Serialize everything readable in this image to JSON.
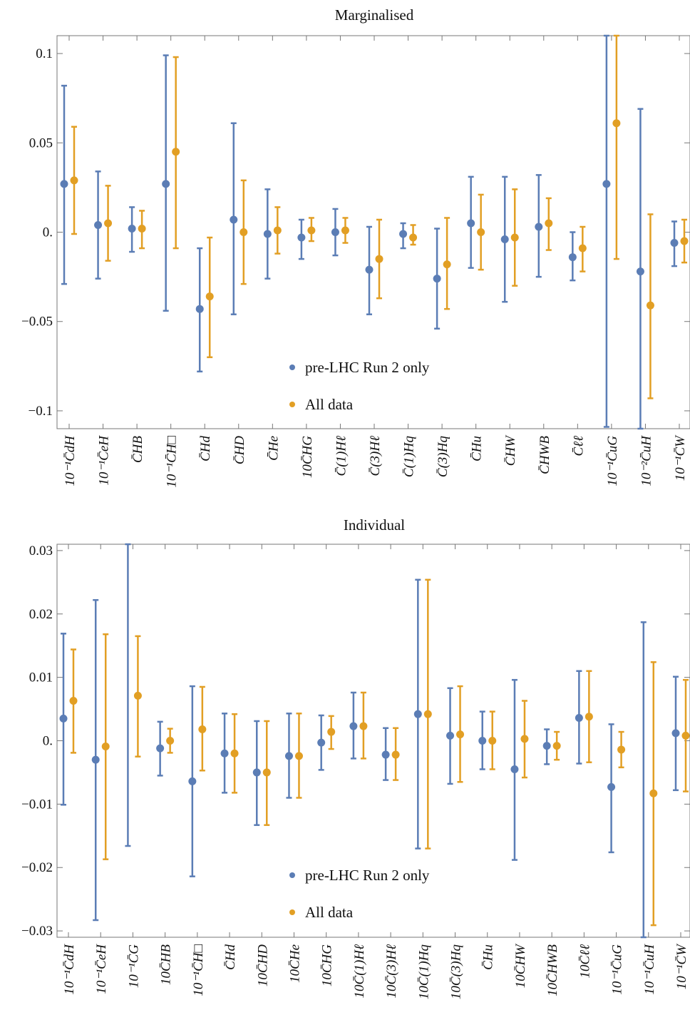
{
  "colors": {
    "pre_lhc": "#5b7db5",
    "all_data": "#e29f24"
  },
  "legend": {
    "series_a": "pre-LHC Run 2 only",
    "series_b": "All data"
  },
  "chart_data": [
    {
      "type": "scatter",
      "title": "Marginalised",
      "ylim": [
        -0.11,
        0.11
      ],
      "yticks": [
        -0.1,
        -0.05,
        0,
        0.05,
        0.1
      ],
      "ytick_labels": [
        "−0.1",
        "−0.05",
        "0.",
        "0.05",
        "0.1"
      ],
      "categories": [
        "10⁻¹C̄dH",
        "10⁻¹C̄eH",
        "C̄HB",
        "10⁻¹C̄H□",
        "C̄Hd",
        "C̄HD",
        "C̄He",
        "10C̄HG",
        "C̄(1)Hℓ",
        "C̄(3)Hℓ",
        "C̄(1)Hq",
        "C̄(3)Hq",
        "C̄Hu",
        "C̄HW",
        "C̄HWB",
        "C̄ℓℓ",
        "10⁻¹C̄uG",
        "10⁻²C̄uH",
        "10⁻¹C̄W"
      ],
      "series": [
        {
          "name": "pre-LHC Run 2 only",
          "values": [
            0.027,
            0.004,
            0.002,
            0.027,
            -0.043,
            0.007,
            -0.001,
            -0.003,
            0.0,
            -0.021,
            -0.001,
            -0.026,
            0.005,
            -0.004,
            0.003,
            -0.014,
            0.027,
            -0.022,
            -0.006
          ],
          "low": [
            -0.029,
            -0.026,
            -0.011,
            -0.044,
            -0.078,
            -0.046,
            -0.026,
            -0.015,
            -0.013,
            -0.046,
            -0.009,
            -0.054,
            -0.02,
            -0.039,
            -0.025,
            -0.027,
            -0.109,
            -0.11,
            -0.019
          ],
          "high": [
            0.082,
            0.034,
            0.014,
            0.099,
            -0.009,
            0.061,
            0.024,
            0.007,
            0.013,
            0.003,
            0.005,
            0.002,
            0.031,
            0.031,
            0.032,
            0.0,
            0.11,
            0.069,
            0.006
          ]
        },
        {
          "name": "All data",
          "values": [
            0.029,
            0.005,
            0.002,
            0.045,
            -0.036,
            0.0,
            0.001,
            0.001,
            0.001,
            -0.015,
            -0.003,
            -0.018,
            0.0,
            -0.003,
            0.005,
            -0.009,
            0.061,
            -0.041,
            -0.005
          ],
          "low": [
            -0.001,
            -0.016,
            -0.009,
            -0.009,
            -0.07,
            -0.029,
            -0.012,
            -0.005,
            -0.006,
            -0.037,
            -0.007,
            -0.043,
            -0.021,
            -0.03,
            -0.01,
            -0.022,
            -0.015,
            -0.093,
            -0.017
          ],
          "high": [
            0.059,
            0.026,
            0.012,
            0.098,
            -0.003,
            0.029,
            0.014,
            0.008,
            0.008,
            0.007,
            0.004,
            0.008,
            0.021,
            0.024,
            0.019,
            0.003,
            0.11,
            0.01,
            0.007
          ]
        }
      ]
    },
    {
      "type": "scatter",
      "title": "Individual",
      "ylim": [
        -0.031,
        0.031
      ],
      "yticks": [
        -0.03,
        -0.02,
        -0.01,
        0,
        0.01,
        0.02,
        0.03
      ],
      "ytick_labels": [
        "−0.03",
        "−0.02",
        "−0.01",
        "0.",
        "0.01",
        "0.02",
        "0.03"
      ],
      "categories": [
        "10⁻¹C̄dH",
        "10⁻¹C̄eH",
        "10⁻¹C̄G",
        "10C̄HB",
        "10⁻¹C̄H□",
        "C̄Hd",
        "10C̄HD",
        "10C̄He",
        "10C̄HG",
        "10C̄(1)Hℓ",
        "10C̄(3)Hℓ",
        "10C̄(1)Hq",
        "10C̄(3)Hq",
        "C̄Hu",
        "10C̄HW",
        "10C̄HWB",
        "10C̄ℓℓ",
        "10⁻¹C̄uG",
        "10⁻¹C̄uH",
        "10⁻¹C̄W"
      ],
      "series": [
        {
          "name": "pre-LHC Run 2 only",
          "values": [
            0.0035,
            -0.003,
            null,
            -0.0012,
            -0.0064,
            -0.002,
            -0.005,
            -0.0024,
            -0.0003,
            0.0023,
            -0.0022,
            0.0042,
            0.0008,
            0.0,
            -0.0045,
            -0.0008,
            0.0036,
            -0.0073,
            null,
            0.0012
          ],
          "low": [
            -0.0101,
            -0.0283,
            -0.0166,
            -0.0055,
            -0.0214,
            -0.0082,
            -0.0133,
            -0.009,
            -0.0046,
            -0.0028,
            -0.0062,
            -0.017,
            -0.0068,
            -0.0045,
            -0.0188,
            -0.0037,
            -0.0036,
            -0.0176,
            -0.031,
            -0.0078
          ],
          "high": [
            0.0169,
            0.0222,
            0.031,
            0.003,
            0.0086,
            0.0043,
            0.0031,
            0.0043,
            0.004,
            0.0076,
            0.002,
            0.0254,
            0.0083,
            0.0046,
            0.0096,
            0.0018,
            0.011,
            0.0026,
            0.0187,
            0.0101
          ]
        },
        {
          "name": "All data",
          "values": [
            0.0063,
            -0.0009,
            0.0071,
            0.0,
            0.0018,
            -0.002,
            -0.005,
            -0.0024,
            0.0014,
            0.0023,
            -0.0022,
            0.0042,
            0.001,
            0.0,
            0.0003,
            -0.0008,
            0.0038,
            -0.0014,
            -0.0083,
            0.0008
          ],
          "low": [
            -0.0019,
            -0.0187,
            -0.0025,
            -0.0019,
            -0.0047,
            -0.0082,
            -0.0133,
            -0.009,
            -0.0013,
            -0.0028,
            -0.0062,
            -0.017,
            -0.0065,
            -0.0045,
            -0.0058,
            -0.003,
            -0.0034,
            -0.0042,
            -0.0291,
            -0.008
          ],
          "high": [
            0.0144,
            0.0168,
            0.0165,
            0.0019,
            0.0085,
            0.0042,
            0.0031,
            0.0043,
            0.0039,
            0.0076,
            0.002,
            0.0254,
            0.0086,
            0.0046,
            0.0063,
            0.0014,
            0.011,
            0.0014,
            0.0124,
            0.0096
          ]
        }
      ]
    }
  ]
}
